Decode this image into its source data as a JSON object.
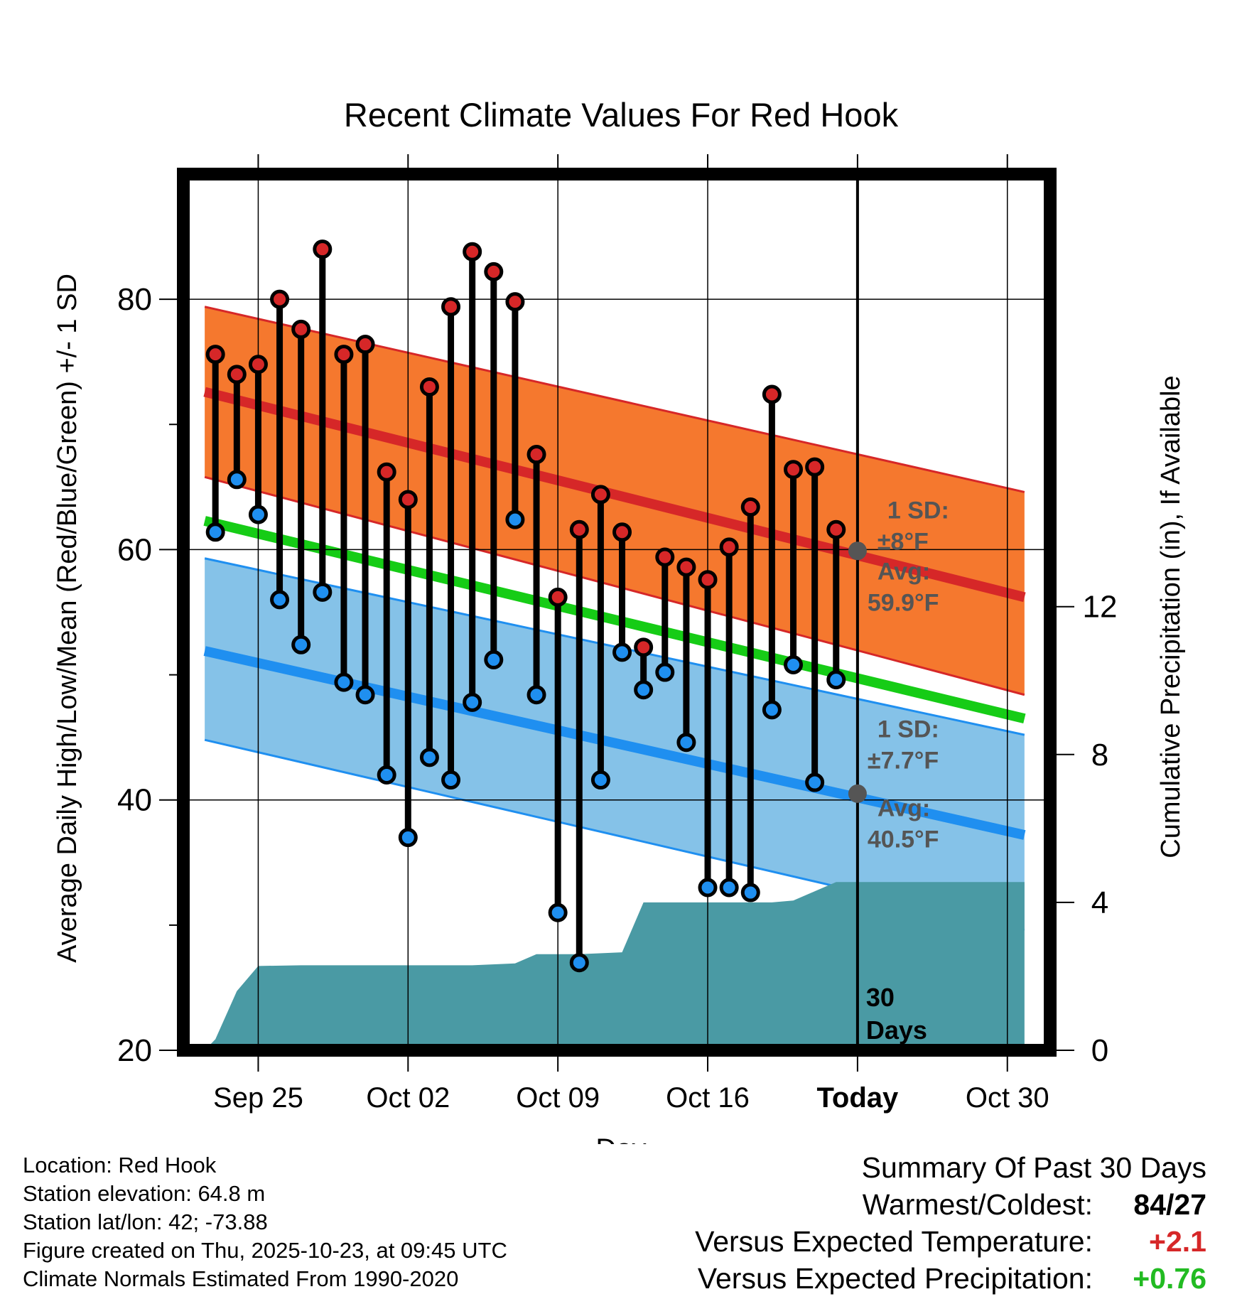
{
  "chart_data": {
    "type": "line",
    "title": "Recent Climate Values For Red Hook",
    "xlabel": "Day",
    "ylabel": "Average Daily High/Low/Mean (Red/Blue/Green) +/- 1 SD",
    "y2label": "Cumulative Precipitation (in), If Available",
    "x_range": [
      -3.5,
      37
    ],
    "ylim": [
      20,
      90
    ],
    "y2lim": [
      0,
      23.7
    ],
    "x_ticks": [
      {
        "x": 0,
        "label": "Sep 25"
      },
      {
        "x": 7,
        "label": "Oct 02"
      },
      {
        "x": 14,
        "label": "Oct 09"
      },
      {
        "x": 21,
        "label": "Oct 16"
      },
      {
        "x": 28,
        "label": "Today"
      },
      {
        "x": 35,
        "label": "Oct 30"
      }
    ],
    "y_ticks": [
      20,
      40,
      60,
      80
    ],
    "y_minor_ticks": [
      30,
      50,
      70
    ],
    "y2_ticks": [
      0,
      4,
      8,
      12
    ],
    "today_x": 28,
    "today_label": "30\nDays",
    "normals": {
      "x_start": -2.5,
      "x_end": 35.8,
      "high_mean": [
        72.6,
        56.2
      ],
      "high_upper": [
        79.4,
        64.6
      ],
      "high_lower": [
        65.8,
        48.4
      ],
      "mean": [
        62.3,
        46.5
      ],
      "low_mean": [
        51.9,
        37.2
      ],
      "low_upper": [
        59.3,
        45.2
      ],
      "low_lower": [
        44.8,
        29.6
      ]
    },
    "series": [
      {
        "name": "High",
        "color": "#d62728",
        "x": [
          -2,
          -1,
          0,
          1,
          2,
          3,
          4,
          5,
          6,
          7,
          8,
          9,
          10,
          11,
          12,
          13,
          14,
          15,
          16,
          17,
          18,
          19,
          20,
          21,
          22,
          23,
          24,
          25,
          26,
          27
        ],
        "values": [
          75.6,
          74.0,
          74.8,
          80.0,
          77.6,
          84.0,
          75.6,
          76.4,
          66.2,
          64.0,
          73.0,
          79.4,
          83.8,
          82.2,
          79.8,
          67.6,
          56.2,
          61.6,
          64.4,
          61.4,
          52.2,
          59.4,
          58.6,
          57.6,
          60.2,
          63.4,
          72.4,
          66.4,
          66.6,
          61.6
        ]
      },
      {
        "name": "Low",
        "color": "#1f8ff0",
        "x": [
          -2,
          -1,
          0,
          1,
          2,
          3,
          4,
          5,
          6,
          7,
          8,
          9,
          10,
          11,
          12,
          13,
          14,
          15,
          16,
          17,
          18,
          19,
          20,
          21,
          22,
          23,
          24,
          25,
          26,
          27
        ],
        "values": [
          61.4,
          65.6,
          62.8,
          56.0,
          52.4,
          56.6,
          49.4,
          48.4,
          42.0,
          37.0,
          43.4,
          41.6,
          47.8,
          51.2,
          62.4,
          48.4,
          31.0,
          27.0,
          41.6,
          51.8,
          48.8,
          50.2,
          44.6,
          33.0,
          33.0,
          32.6,
          47.2,
          50.8,
          41.4,
          49.6
        ]
      },
      {
        "name": "Cumulative Precipitation",
        "color": "#4a9aa4",
        "x": [
          -2.5,
          -2,
          -1,
          0,
          2,
          5,
          10,
          12,
          13,
          15,
          17,
          18,
          20,
          22,
          24,
          25,
          26,
          27,
          30,
          35.8
        ],
        "values": [
          0,
          0.3,
          1.6,
          2.28,
          2.3,
          2.3,
          2.3,
          2.35,
          2.6,
          2.6,
          2.65,
          4.0,
          4.0,
          4.0,
          4.0,
          4.05,
          4.3,
          4.55,
          4.55,
          4.55
        ]
      }
    ],
    "annotations": [
      {
        "key": "high_sd",
        "line1": "1 SD:",
        "line2": "±8°F"
      },
      {
        "key": "high_avg",
        "line1": "Avg:",
        "line2": "59.9°F",
        "value": 59.9
      },
      {
        "key": "low_sd",
        "line1": "1 SD:",
        "line2": "±7.7°F"
      },
      {
        "key": "low_avg",
        "line1": "Avg:",
        "line2": "40.5°F",
        "value": 40.5
      }
    ],
    "colors": {
      "high_band": "#f5782e",
      "high_line": "#d62728",
      "mean_line": "#16cc16",
      "low_band": "#85c2e8",
      "low_line": "#1f8ff0",
      "precip": "#4a9aa4",
      "annotation": "#555555"
    }
  },
  "info": {
    "location": "Location: Red Hook",
    "elevation": "Station elevation: 64.8 m",
    "latlon": "Station lat/lon: 42; -73.88",
    "created": "Figure created on Thu, 2025-10-23, at 09:45 UTC",
    "normals": "Climate Normals Estimated From 1990-2020"
  },
  "summary": {
    "heading": "Summary Of Past 30 Days",
    "warmest_label": "Warmest/Coldest:",
    "warmest_value": "84/27",
    "temp_label": "Versus Expected Temperature:",
    "temp_value": "+2.1",
    "temp_color": "#d62728",
    "precip_label": "Versus Expected Precipitation:",
    "precip_value": "+0.76",
    "precip_color": "#22bb22"
  }
}
